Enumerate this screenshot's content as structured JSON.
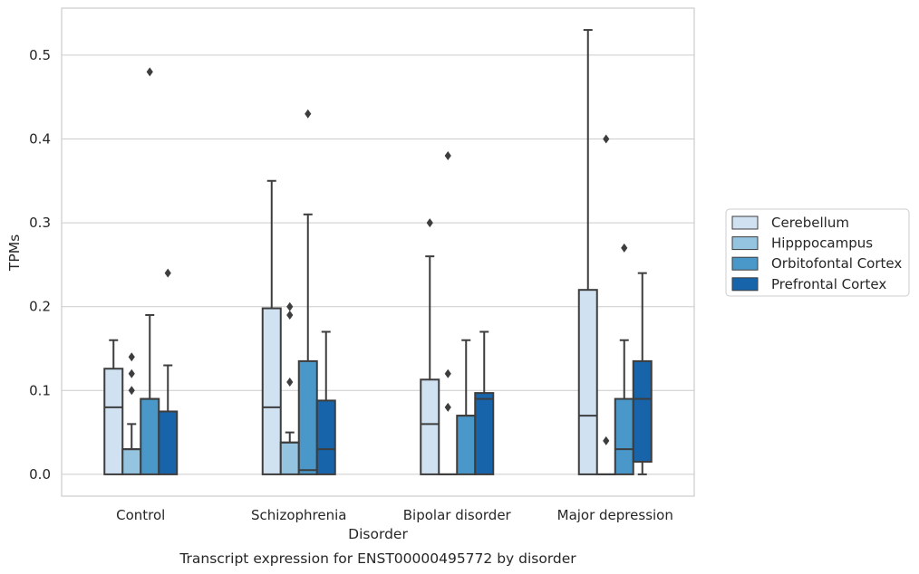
{
  "chart_data": {
    "type": "box",
    "title": "",
    "caption": "Transcript expression for ENST00000495772 by disorder",
    "xlabel": "Disorder",
    "ylabel": "TPMs",
    "ylim": [
      -0.026,
      0.556
    ],
    "yticks": [
      0.0,
      0.1,
      0.2,
      0.3,
      0.4,
      0.5
    ],
    "ytick_labels": [
      "0.0",
      "0.1",
      "0.2",
      "0.3",
      "0.4",
      "0.5"
    ],
    "grid": "horizontal",
    "legend_position": "right",
    "categories": [
      "Control",
      "Schizophrenia",
      "Bipolar disorder",
      "Major depression"
    ],
    "series": [
      {
        "name": "Cerebellum",
        "color": "#d0e1f2",
        "boxes": [
          {
            "q1": 0.0,
            "median": 0.08,
            "q3": 0.126,
            "whisker_low": 0.0,
            "whisker_high": 0.16,
            "outliers": []
          },
          {
            "q1": 0.0,
            "median": 0.08,
            "q3": 0.198,
            "whisker_low": 0.0,
            "whisker_high": 0.35,
            "outliers": []
          },
          {
            "q1": 0.0,
            "median": 0.06,
            "q3": 0.113,
            "whisker_low": 0.0,
            "whisker_high": 0.26,
            "outliers": [
              0.3
            ]
          },
          {
            "q1": 0.0,
            "median": 0.07,
            "q3": 0.22,
            "whisker_low": 0.0,
            "whisker_high": 0.53,
            "outliers": []
          }
        ]
      },
      {
        "name": "Hipppocampus",
        "color": "#94c4df",
        "boxes": [
          {
            "q1": 0.0,
            "median": 0.03,
            "q3": 0.03,
            "whisker_low": 0.0,
            "whisker_high": 0.06,
            "outliers": [
              0.1,
              0.12,
              0.14
            ]
          },
          {
            "q1": 0.0,
            "median": 0.038,
            "q3": 0.038,
            "whisker_low": 0.0,
            "whisker_high": 0.05,
            "outliers": [
              0.11,
              0.19,
              0.2
            ]
          },
          {
            "q1": 0.0,
            "median": 0.0,
            "q3": 0.0,
            "whisker_low": 0.0,
            "whisker_high": 0.0,
            "outliers": [
              0.08,
              0.12,
              0.38
            ]
          },
          {
            "q1": 0.0,
            "median": 0.0,
            "q3": 0.0,
            "whisker_low": 0.0,
            "whisker_high": 0.0,
            "outliers": [
              0.04,
              0.4
            ]
          }
        ]
      },
      {
        "name": "Orbitofontal Cortex",
        "color": "#4a98c9",
        "boxes": [
          {
            "q1": 0.0,
            "median": 0.09,
            "q3": 0.09,
            "whisker_low": 0.0,
            "whisker_high": 0.19,
            "outliers": [
              0.48
            ]
          },
          {
            "q1": 0.0,
            "median": 0.005,
            "q3": 0.135,
            "whisker_low": 0.0,
            "whisker_high": 0.31,
            "outliers": [
              0.43
            ]
          },
          {
            "q1": 0.0,
            "median": 0.07,
            "q3": 0.07,
            "whisker_low": 0.0,
            "whisker_high": 0.16,
            "outliers": []
          },
          {
            "q1": 0.0,
            "median": 0.03,
            "q3": 0.09,
            "whisker_low": 0.0,
            "whisker_high": 0.16,
            "outliers": [
              0.27
            ]
          }
        ]
      },
      {
        "name": "Prefrontal Cortex",
        "color": "#1764ab",
        "boxes": [
          {
            "q1": 0.0,
            "median": 0.075,
            "q3": 0.075,
            "whisker_low": 0.0,
            "whisker_high": 0.13,
            "outliers": [
              0.24
            ]
          },
          {
            "q1": 0.0,
            "median": 0.03,
            "q3": 0.088,
            "whisker_low": 0.0,
            "whisker_high": 0.17,
            "outliers": []
          },
          {
            "q1": 0.0,
            "median": 0.09,
            "q3": 0.097,
            "whisker_low": 0.0,
            "whisker_high": 0.17,
            "outliers": []
          },
          {
            "q1": 0.015,
            "median": 0.09,
            "q3": 0.135,
            "whisker_low": 0.0,
            "whisker_high": 0.24,
            "outliers": []
          }
        ]
      }
    ]
  }
}
